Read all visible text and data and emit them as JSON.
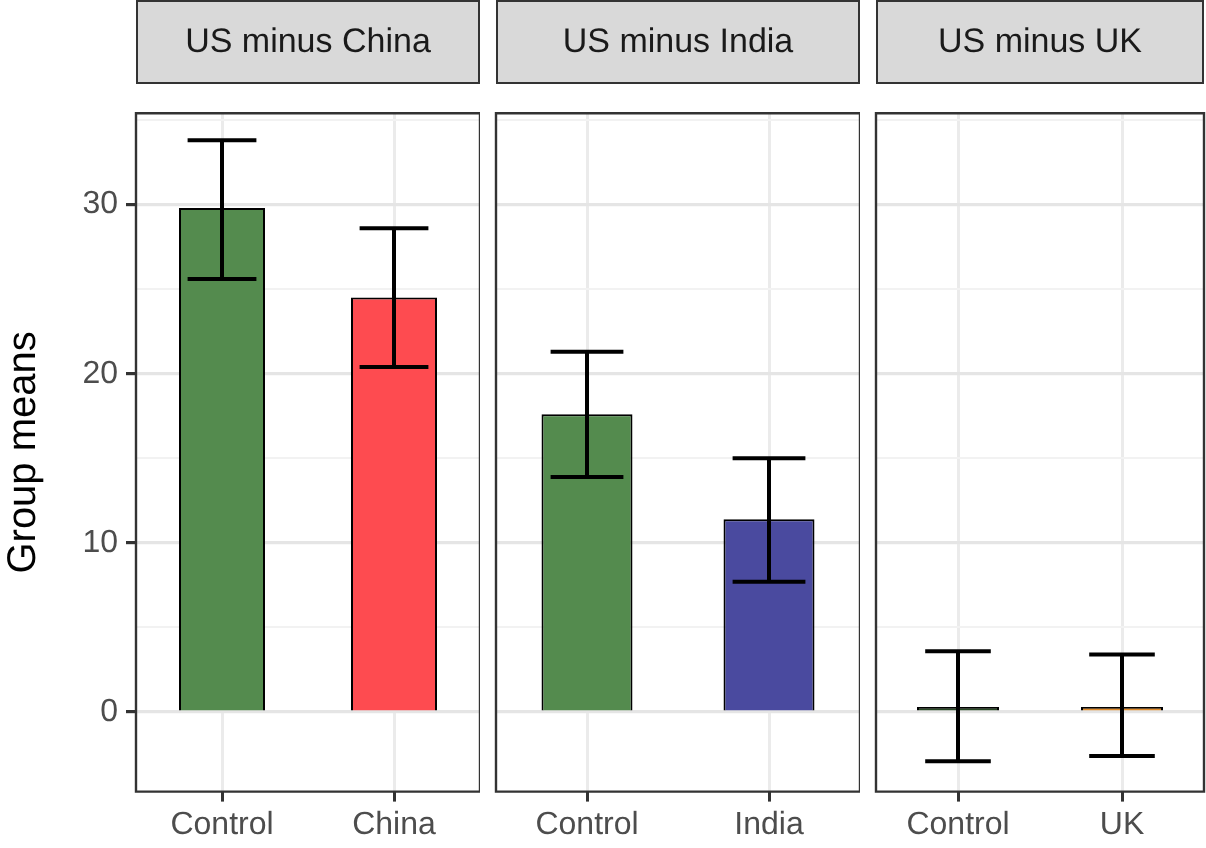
{
  "chart_data": [
    {
      "type": "bar",
      "title": "US minus China",
      "ylabel": "Group means",
      "categories": [
        "Control",
        "China"
      ],
      "values": [
        29.8,
        24.5
      ],
      "colors": [
        "#548b4e",
        "#fe4b50"
      ],
      "errors": [
        [
          25.6,
          33.8
        ],
        [
          20.4,
          28.6
        ]
      ],
      "ylim": [
        -4.7,
        35.4
      ],
      "yticks": [
        0,
        {
          "value": 5,
          "label": null
        },
        10,
        {
          "value": 15,
          "label": null
        },
        20,
        {
          "value": 25,
          "label": null
        },
        30,
        {
          "value": 35,
          "label": null
        }
      ],
      "grid": true
    },
    {
      "type": "bar",
      "title": "US minus India",
      "categories": [
        "Control",
        "India"
      ],
      "values": [
        17.6,
        11.4
      ],
      "colors": [
        "#548b4e",
        "#4a4a9f"
      ],
      "errors": [
        [
          13.9,
          21.3
        ],
        [
          7.7,
          15.0
        ]
      ],
      "ylim": [
        -4.7,
        35.4
      ],
      "yticks": [
        0,
        {
          "value": 5,
          "label": null
        },
        10,
        {
          "value": 15,
          "label": null
        },
        20,
        {
          "value": 25,
          "label": null
        },
        30,
        {
          "value": 35,
          "label": null
        }
      ],
      "grid": true,
      "tick_labels": "x"
    },
    {
      "type": "bar",
      "title": "US minus UK",
      "categories": [
        "Control",
        "UK"
      ],
      "values": [
        0.3,
        0.3
      ],
      "colors": [
        "#2a4a26",
        "#e08a2a"
      ],
      "errors": [
        [
          -2.9,
          3.6
        ],
        [
          -2.6,
          3.4
        ]
      ],
      "ylim": [
        -4.7,
        35.4
      ],
      "yticks": [
        0,
        {
          "value": 5,
          "label": null
        },
        10,
        {
          "value": 15,
          "label": null
        },
        20,
        {
          "value": 25,
          "label": null
        },
        30,
        {
          "value": 35,
          "label": null
        }
      ],
      "grid": true,
      "tick_labels": "x"
    }
  ]
}
